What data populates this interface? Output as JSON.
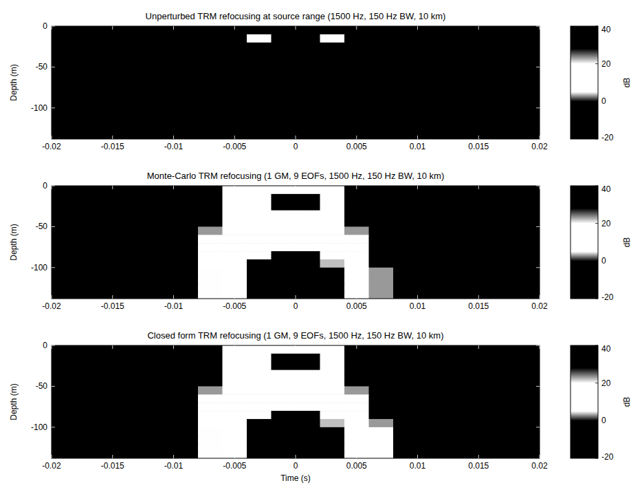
{
  "chart_data": [
    {
      "type": "heatmap",
      "title": "Unperturbed TRM refocusing at source range (1500 Hz, 150 Hz BW, 10 km)",
      "y_label": "Depth (m)",
      "xlim": [
        -0.02,
        0.02
      ],
      "xticks": [
        -0.02,
        -0.015,
        -0.01,
        -0.005,
        0,
        0.005,
        0.01,
        0.015,
        0.02
      ],
      "ylim": [
        -138,
        0
      ],
      "yticks": [
        0,
        -50,
        -100
      ],
      "x_edges": [
        -0.02,
        -0.018,
        -0.016,
        -0.014,
        -0.012,
        -0.01,
        -0.008,
        -0.006,
        -0.004,
        -0.002,
        0,
        0.002,
        0.004,
        0.006,
        0.008,
        0.01,
        0.012,
        0.014,
        0.016,
        0.018,
        0.02
      ],
      "y_edges": [
        0,
        -10,
        -20,
        -30,
        -40,
        -50,
        -60,
        -70,
        -80,
        -90,
        -100,
        -110,
        -120,
        -130,
        -140
      ],
      "values": [
        [
          -20,
          -20,
          -20,
          -20,
          -20,
          -20,
          -20,
          -20,
          -20,
          -20,
          -20,
          -20,
          -20,
          -20,
          -20,
          -20,
          -20,
          -20,
          -20,
          -20
        ],
        [
          -20,
          -20,
          -20,
          -20,
          -20,
          -20,
          -20,
          -20,
          12,
          32,
          32,
          12,
          -20,
          -20,
          -20,
          -20,
          -20,
          -20,
          -20,
          -20
        ],
        [
          -20,
          -20,
          -20,
          -20,
          -20,
          -20,
          -20,
          -20,
          -20,
          -20,
          -20,
          -20,
          -20,
          -20,
          -20,
          -20,
          -20,
          -20,
          -20,
          -20
        ],
        [
          -20,
          -20,
          -20,
          -20,
          -20,
          -20,
          -20,
          -20,
          -20,
          -20,
          -20,
          -20,
          -20,
          -20,
          -20,
          -20,
          -20,
          -20,
          -20,
          -20
        ],
        [
          -20,
          -20,
          -20,
          -20,
          -20,
          -20,
          -20,
          -20,
          -20,
          -20,
          -20,
          -20,
          -20,
          -20,
          -20,
          -20,
          -20,
          -20,
          -20,
          -20
        ],
        [
          -20,
          -20,
          -20,
          -20,
          -20,
          -20,
          -20,
          -20,
          -20,
          -20,
          -20,
          -20,
          -20,
          -20,
          -20,
          -20,
          -20,
          -20,
          -20,
          -20
        ],
        [
          -20,
          -20,
          -20,
          -20,
          -20,
          -20,
          -20,
          -20,
          -20,
          -20,
          -20,
          -20,
          -20,
          -20,
          -20,
          -20,
          -20,
          -20,
          -20,
          -20
        ],
        [
          -20,
          -20,
          -20,
          -20,
          -20,
          -20,
          -20,
          -20,
          -20,
          -20,
          -20,
          -20,
          -20,
          -20,
          -20,
          -20,
          -20,
          -20,
          -20,
          -20
        ],
        [
          -20,
          -20,
          -20,
          -20,
          -20,
          -20,
          -20,
          -20,
          -20,
          -20,
          -20,
          -20,
          -20,
          -20,
          -20,
          -20,
          -20,
          -20,
          -20,
          -20
        ],
        [
          -20,
          -20,
          -20,
          -20,
          -20,
          -20,
          -20,
          -20,
          -20,
          -20,
          -20,
          -20,
          -20,
          -20,
          -20,
          -20,
          -20,
          -20,
          -20,
          -20
        ],
        [
          -20,
          -20,
          -20,
          -20,
          -20,
          -20,
          -20,
          -20,
          -20,
          -20,
          -20,
          -20,
          -20,
          -20,
          -20,
          -20,
          -20,
          -20,
          -20,
          -20
        ],
        [
          -20,
          -20,
          -20,
          -20,
          -20,
          -20,
          -20,
          -20,
          -20,
          -20,
          -20,
          -20,
          -20,
          -20,
          -20,
          -20,
          -20,
          -20,
          -20,
          -20
        ],
        [
          -20,
          -20,
          -20,
          -20,
          -20,
          -20,
          -20,
          -20,
          -20,
          -20,
          -20,
          -20,
          -20,
          -20,
          -20,
          -20,
          -20,
          -20,
          -20,
          -20
        ],
        [
          -20,
          -20,
          -20,
          -20,
          -20,
          -20,
          -20,
          -20,
          -20,
          -20,
          -20,
          -20,
          -20,
          -20,
          -20,
          -20,
          -20,
          -20,
          -20,
          -20
        ]
      ],
      "colorbar": {
        "label": "dB",
        "range": [
          -20,
          40
        ],
        "ticks": [
          -20,
          0,
          20,
          40
        ]
      }
    },
    {
      "type": "heatmap",
      "title": "Monte-Carlo TRM refocusing (1 GM, 9 EOFs, 1500 Hz, 150 Hz BW, 10 km)",
      "y_label": "Depth (m)",
      "xlim": [
        -0.02,
        0.02
      ],
      "xticks": [
        -0.02,
        -0.015,
        -0.01,
        -0.005,
        0,
        0.005,
        0.01,
        0.015,
        0.02
      ],
      "ylim": [
        -138,
        0
      ],
      "yticks": [
        0,
        -50,
        -100
      ],
      "x_edges": [
        -0.02,
        -0.018,
        -0.016,
        -0.014,
        -0.012,
        -0.01,
        -0.008,
        -0.006,
        -0.004,
        -0.002,
        0,
        0.002,
        0.004,
        0.006,
        0.008,
        0.01,
        0.012,
        0.014,
        0.016,
        0.018,
        0.02
      ],
      "y_edges": [
        0,
        -10,
        -20,
        -30,
        -40,
        -50,
        -60,
        -70,
        -80,
        -90,
        -100,
        -110,
        -120,
        -130,
        -140
      ],
      "values": [
        [
          -20,
          -20,
          -20,
          -20,
          -20,
          -20,
          -20,
          12,
          12,
          12,
          12,
          12,
          -20,
          -20,
          -20,
          -20,
          -20,
          -20,
          -20,
          -20
        ],
        [
          -20,
          -20,
          -20,
          -20,
          -20,
          -20,
          -20,
          12,
          12,
          32,
          32,
          12,
          -20,
          -20,
          -20,
          -20,
          -20,
          -20,
          -20,
          -20
        ],
        [
          -20,
          -20,
          -20,
          -20,
          -20,
          -20,
          -20,
          12,
          12,
          30,
          30,
          12,
          -20,
          -20,
          -20,
          -20,
          -20,
          -20,
          -20,
          -20
        ],
        [
          -20,
          -20,
          -20,
          -20,
          -20,
          -20,
          -20,
          14,
          14,
          14,
          14,
          14,
          -20,
          -20,
          -20,
          -20,
          -20,
          -20,
          -20,
          -20
        ],
        [
          -20,
          -20,
          -20,
          -20,
          -20,
          -20,
          -20,
          14,
          14,
          14,
          14,
          14,
          -20,
          -20,
          -20,
          -20,
          -20,
          -20,
          -20,
          -20
        ],
        [
          -20,
          -20,
          -20,
          -20,
          -20,
          -20,
          3,
          14,
          14,
          14,
          14,
          14,
          3,
          -20,
          -20,
          -20,
          -20,
          -20,
          -20,
          -20
        ],
        [
          -20,
          -20,
          -20,
          -20,
          -20,
          -20,
          6,
          14,
          14,
          14,
          14,
          14,
          5,
          -20,
          -20,
          -20,
          -20,
          -20,
          -20,
          -20
        ],
        [
          -20,
          -20,
          -20,
          -20,
          -20,
          -20,
          10,
          14,
          14,
          20,
          20,
          14,
          10,
          -20,
          -20,
          -20,
          -20,
          -20,
          -20,
          -20
        ],
        [
          -20,
          -20,
          -20,
          -20,
          -20,
          -20,
          10,
          14,
          18,
          30,
          30,
          16,
          10,
          -20,
          -20,
          -20,
          -20,
          -20,
          -20,
          -20
        ],
        [
          -20,
          -20,
          -20,
          -20,
          -20,
          -20,
          8,
          15,
          30,
          32,
          30,
          22,
          8,
          -20,
          -20,
          -20,
          -20,
          -20,
          -20,
          -20
        ],
        [
          -20,
          -20,
          -20,
          -20,
          -20,
          -20,
          5,
          15,
          32,
          34,
          32,
          30,
          12,
          3,
          -20,
          -20,
          -20,
          -20,
          -20,
          -20
        ],
        [
          -20,
          -20,
          -20,
          -20,
          -20,
          -20,
          5,
          15,
          32,
          34,
          32,
          30,
          12,
          3,
          -20,
          -20,
          -20,
          -20,
          -20,
          -20
        ],
        [
          -20,
          -20,
          -20,
          -20,
          -20,
          -20,
          5,
          15,
          32,
          34,
          32,
          30,
          12,
          3,
          -20,
          -20,
          -20,
          -20,
          -20,
          -20
        ],
        [
          -20,
          -20,
          -20,
          -20,
          -20,
          -20,
          5,
          15,
          32,
          34,
          32,
          30,
          12,
          3,
          -20,
          -20,
          -20,
          -20,
          -20,
          -20
        ]
      ],
      "colorbar": {
        "label": "dB",
        "range": [
          -20,
          40
        ],
        "ticks": [
          -20,
          0,
          20,
          40
        ]
      }
    },
    {
      "type": "heatmap",
      "title": "Closed form TRM refocusing (1 GM, 9 EOFs, 1500 Hz, 150 Hz BW, 10 km)",
      "y_label": "Depth (m)",
      "x_label": "Time (s)",
      "xlim": [
        -0.02,
        0.02
      ],
      "xticks": [
        -0.02,
        -0.015,
        -0.01,
        -0.005,
        0,
        0.005,
        0.01,
        0.015,
        0.02
      ],
      "ylim": [
        -138,
        0
      ],
      "yticks": [
        0,
        -50,
        -100
      ],
      "x_edges": [
        -0.02,
        -0.018,
        -0.016,
        -0.014,
        -0.012,
        -0.01,
        -0.008,
        -0.006,
        -0.004,
        -0.002,
        0,
        0.002,
        0.004,
        0.006,
        0.008,
        0.01,
        0.012,
        0.014,
        0.016,
        0.018,
        0.02
      ],
      "y_edges": [
        0,
        -10,
        -20,
        -30,
        -40,
        -50,
        -60,
        -70,
        -80,
        -90,
        -100,
        -110,
        -120,
        -130,
        -140
      ],
      "values": [
        [
          -20,
          -20,
          -20,
          -20,
          -20,
          -20,
          -20,
          12,
          12,
          12,
          12,
          12,
          -20,
          -20,
          -20,
          -20,
          -20,
          -20,
          -20,
          -20
        ],
        [
          -20,
          -20,
          -20,
          -20,
          -20,
          -20,
          -20,
          12,
          12,
          32,
          32,
          12,
          -20,
          -20,
          -20,
          -20,
          -20,
          -20,
          -20,
          -20
        ],
        [
          -20,
          -20,
          -20,
          -20,
          -20,
          -20,
          -20,
          12,
          12,
          30,
          30,
          12,
          -20,
          -20,
          -20,
          -20,
          -20,
          -20,
          -20,
          -20
        ],
        [
          -20,
          -20,
          -20,
          -20,
          -20,
          -20,
          -20,
          14,
          14,
          14,
          14,
          14,
          -20,
          -20,
          -20,
          -20,
          -20,
          -20,
          -20,
          -20
        ],
        [
          -20,
          -20,
          -20,
          -20,
          -20,
          -20,
          -20,
          14,
          14,
          14,
          14,
          14,
          -20,
          -20,
          -20,
          -20,
          -20,
          -20,
          -20,
          -20
        ],
        [
          -20,
          -20,
          -20,
          -20,
          -20,
          -20,
          3,
          14,
          14,
          14,
          14,
          14,
          3,
          -20,
          -20,
          -20,
          -20,
          -20,
          -20,
          -20
        ],
        [
          -20,
          -20,
          -20,
          -20,
          -20,
          -20,
          6,
          14,
          14,
          14,
          14,
          14,
          5,
          -20,
          -20,
          -20,
          -20,
          -20,
          -20,
          -20
        ],
        [
          -20,
          -20,
          -20,
          -20,
          -20,
          -20,
          10,
          14,
          14,
          20,
          20,
          14,
          10,
          -20,
          -20,
          -20,
          -20,
          -20,
          -20,
          -20
        ],
        [
          -20,
          -20,
          -20,
          -20,
          -20,
          -20,
          10,
          14,
          18,
          30,
          30,
          16,
          10,
          -20,
          -20,
          -20,
          -20,
          -20,
          -20,
          -20
        ],
        [
          -20,
          -20,
          -20,
          -20,
          -20,
          -20,
          8,
          15,
          30,
          32,
          30,
          22,
          10,
          3,
          -20,
          -20,
          -20,
          -20,
          -20,
          -20
        ],
        [
          -20,
          -20,
          -20,
          -20,
          -20,
          -20,
          5,
          15,
          32,
          34,
          32,
          30,
          14,
          10,
          -20,
          -20,
          -20,
          -20,
          -20,
          -20
        ],
        [
          -20,
          -20,
          -20,
          -20,
          -20,
          -20,
          5,
          15,
          32,
          34,
          32,
          30,
          14,
          10,
          -20,
          -20,
          -20,
          -20,
          -20,
          -20
        ],
        [
          -20,
          -20,
          -20,
          -20,
          -20,
          -20,
          5,
          15,
          32,
          34,
          32,
          30,
          14,
          10,
          -20,
          -20,
          -20,
          -20,
          -20,
          -20
        ],
        [
          -20,
          -20,
          -20,
          -20,
          -20,
          -20,
          5,
          15,
          32,
          34,
          32,
          30,
          14,
          10,
          -20,
          -20,
          -20,
          -20,
          -20,
          -20
        ]
      ],
      "colorbar": {
        "label": "dB",
        "range": [
          -20,
          40
        ],
        "ticks": [
          -20,
          0,
          20,
          40
        ]
      }
    }
  ]
}
